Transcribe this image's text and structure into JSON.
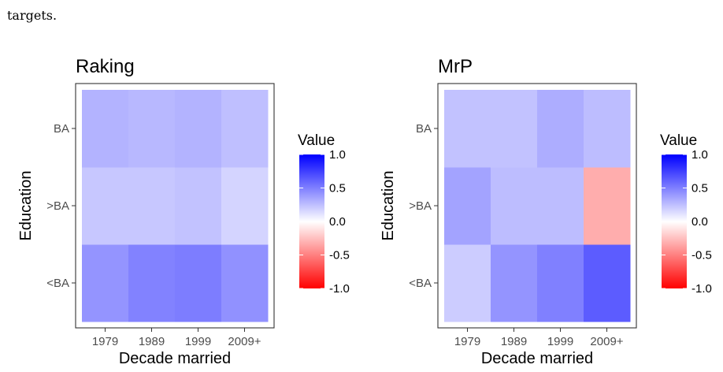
{
  "caption_fragment": "targets.",
  "colors": {
    "low": "#ff0000",
    "mid": "#ffffff",
    "high": "#0000ff"
  },
  "chart_data": [
    {
      "type": "heatmap",
      "title": "Raking",
      "xlabel": "Decade married",
      "ylabel": "Education",
      "x_categories": [
        "1979",
        "1989",
        "1999",
        "2009+"
      ],
      "y_categories": [
        "<BA",
        ">BA",
        "BA"
      ],
      "z": [
        [
          0.42,
          0.49,
          0.51,
          0.43
        ],
        [
          0.22,
          0.22,
          0.24,
          0.17
        ],
        [
          0.3,
          0.28,
          0.3,
          0.25
        ]
      ],
      "legend": {
        "title": "Value",
        "ticks": [
          "1.0",
          "0.5",
          "0.0",
          "-0.5",
          "-1.0"
        ],
        "range": [
          -1,
          1
        ],
        "placement": "right"
      }
    },
    {
      "type": "heatmap",
      "title": "MrP",
      "xlabel": "Decade married",
      "ylabel": "Education",
      "x_categories": [
        "1979",
        "1989",
        "1999",
        "2009+"
      ],
      "y_categories": [
        "<BA",
        ">BA",
        "BA"
      ],
      "z": [
        [
          0.2,
          0.42,
          0.5,
          0.64
        ],
        [
          0.36,
          0.26,
          0.26,
          -0.32
        ],
        [
          0.24,
          0.24,
          0.32,
          0.26
        ]
      ],
      "legend": {
        "title": "Value",
        "ticks": [
          "1.0",
          "0.5",
          "0.0",
          "-0.5",
          "-1.0"
        ],
        "range": [
          -1,
          1
        ],
        "placement": "right"
      }
    }
  ]
}
